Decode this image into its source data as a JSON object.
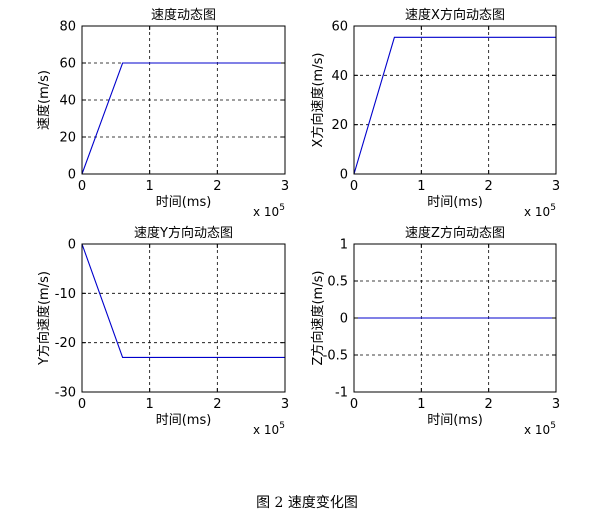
{
  "figure_caption": "图 2  速度变化图",
  "chart_data": [
    {
      "type": "line",
      "title": "速度动态图",
      "xlabel": "时间(ms)",
      "ylabel": "速度(m/s)",
      "x_multiplier": "x 10",
      "x_exponent": "5",
      "xlim": [
        0,
        3
      ],
      "ylim": [
        0,
        80
      ],
      "xticks": [
        0,
        1,
        2,
        3
      ],
      "yticks": [
        0,
        20,
        40,
        60,
        80
      ],
      "grid": true,
      "line_color": "#0000cc",
      "series": [
        {
          "x": [
            0,
            0.6,
            3
          ],
          "y": [
            0,
            60,
            60
          ]
        }
      ]
    },
    {
      "type": "line",
      "title": "速度X方向动态图",
      "xlabel": "时间(ms)",
      "ylabel": "X方向速度(m/s)",
      "x_multiplier": "x 10",
      "x_exponent": "5",
      "xlim": [
        0,
        3
      ],
      "ylim": [
        0,
        60
      ],
      "xticks": [
        0,
        1,
        2,
        3
      ],
      "yticks": [
        0,
        20,
        40,
        60
      ],
      "grid": true,
      "line_color": "#0000cc",
      "series": [
        {
          "x": [
            0,
            0.6,
            3
          ],
          "y": [
            0,
            55.4,
            55.4
          ]
        }
      ]
    },
    {
      "type": "line",
      "title": "速度Y方向动态图",
      "xlabel": "时间(ms)",
      "ylabel": "Y方向速度(m/s)",
      "x_multiplier": "x 10",
      "x_exponent": "5",
      "xlim": [
        0,
        3
      ],
      "ylim": [
        -30,
        0
      ],
      "xticks": [
        0,
        1,
        2,
        3
      ],
      "yticks": [
        -30,
        -20,
        -10,
        0
      ],
      "grid": true,
      "line_color": "#0000cc",
      "series": [
        {
          "x": [
            0,
            0.6,
            3
          ],
          "y": [
            0,
            -23,
            -23
          ]
        }
      ]
    },
    {
      "type": "line",
      "title": "速度Z方向动态图",
      "xlabel": "时间(ms)",
      "ylabel": "Z方向速度(m/s)",
      "x_multiplier": "x 10",
      "x_exponent": "5",
      "xlim": [
        0,
        3
      ],
      "ylim": [
        -1,
        1
      ],
      "xticks": [
        0,
        1,
        2,
        3
      ],
      "yticks": [
        -1,
        -0.5,
        0,
        0.5,
        1
      ],
      "grid": true,
      "line_color": "#0000cc",
      "series": [
        {
          "x": [
            0,
            3
          ],
          "y": [
            0,
            0
          ]
        }
      ]
    }
  ]
}
